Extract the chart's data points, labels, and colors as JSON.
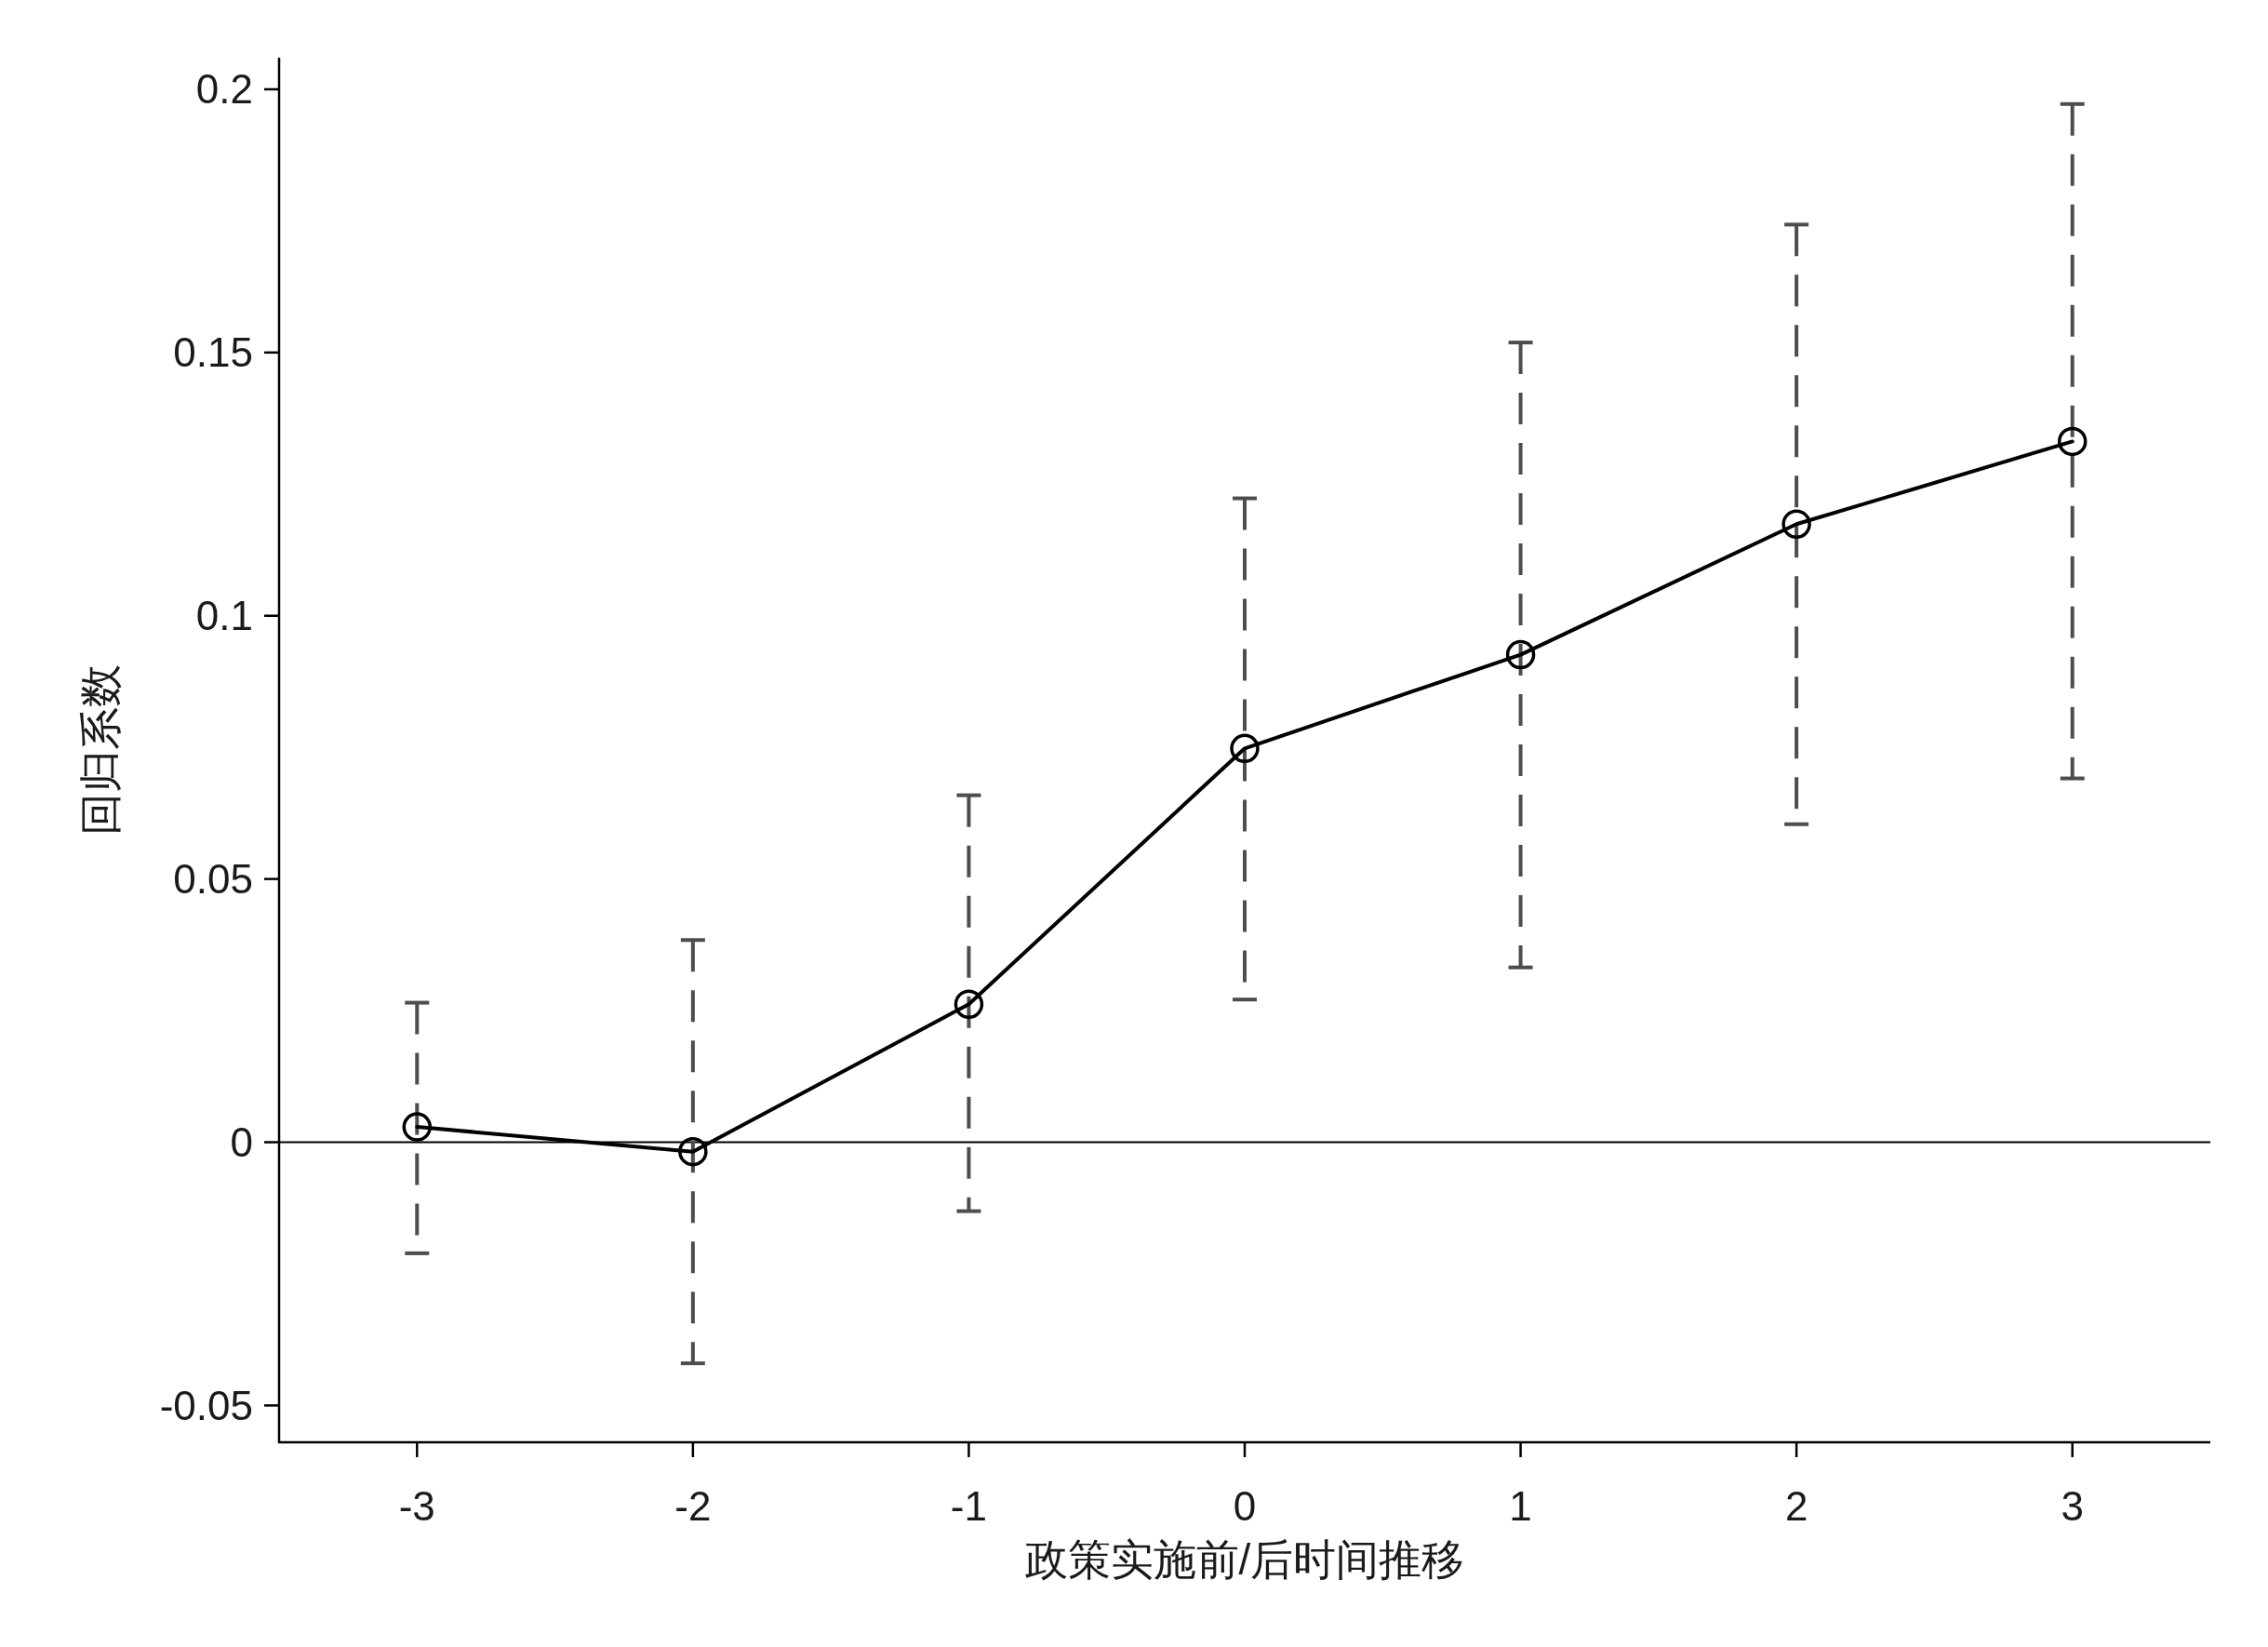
{
  "chart_data": {
    "type": "line",
    "xlabel": "政策实施前/后时间推移",
    "ylabel": "回归系数",
    "x": [
      -3,
      -2,
      -1,
      0,
      1,
      2,
      3
    ],
    "series": [
      {
        "color": "#000000",
        "values": [
          0.0029,
          -0.0018,
          0.0262,
          0.0748,
          0.0926,
          0.1174,
          0.1331
        ],
        "errors": [
          [
            -0.0211,
            0.0265
          ],
          [
            -0.042,
            0.0384
          ],
          [
            -0.0131,
            0.0659
          ],
          [
            0.0271,
            0.1223
          ],
          [
            0.0332,
            0.1519
          ],
          [
            0.0604,
            0.1743
          ],
          [
            0.0691,
            0.1972
          ]
        ]
      }
    ],
    "xlim": [
      -3.5,
      3.5
    ],
    "ylim": [
      -0.057,
      0.206
    ],
    "xticks": [
      -3,
      -2,
      -1,
      0,
      1,
      2,
      3
    ],
    "yticks": [
      -0.05,
      0,
      0.05,
      0.1,
      0.15,
      0.2
    ],
    "ref_lines": [
      {
        "axis": "y",
        "value": 0,
        "color": "#000000"
      }
    ],
    "marker": "circle",
    "line_style": "solid"
  }
}
